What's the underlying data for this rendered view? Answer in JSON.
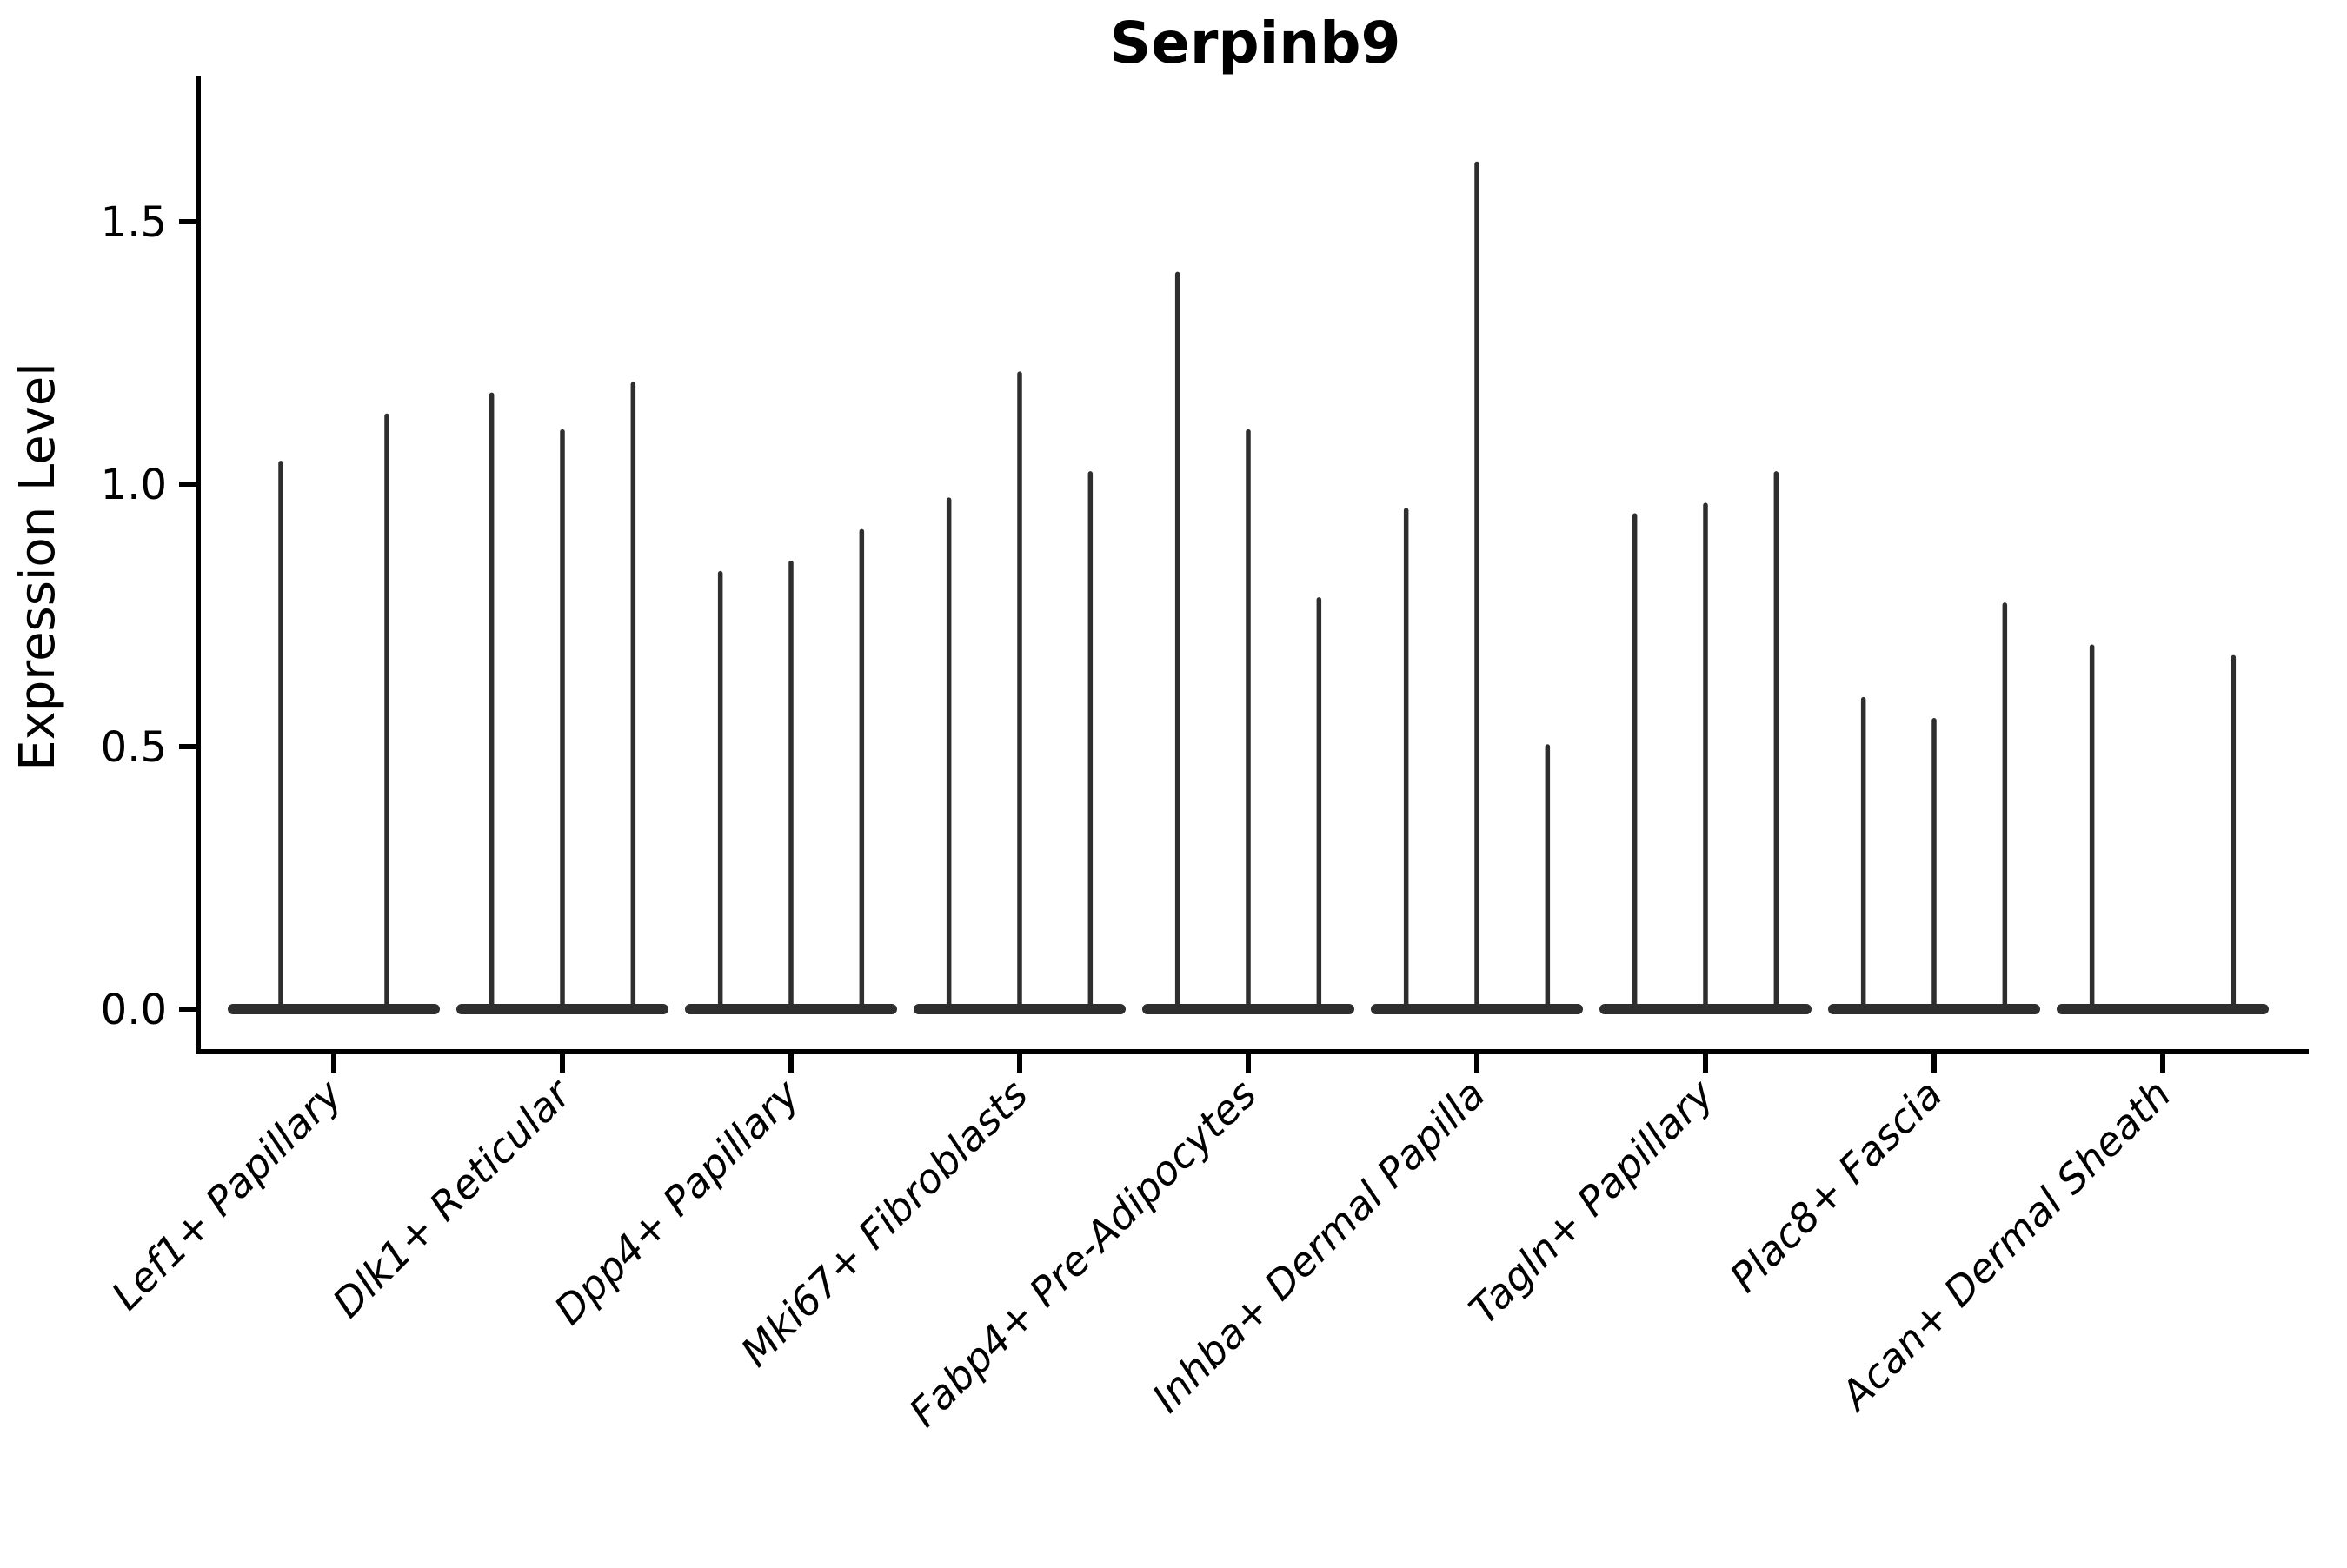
{
  "chart_data": {
    "type": "violin",
    "title": "Serpinb9",
    "xlabel": "",
    "ylabel": "Expression Level",
    "yticks": [
      0.0,
      0.5,
      1.0,
      1.5
    ],
    "ylim": [
      -0.08,
      1.78
    ],
    "legend": "none",
    "grid": false,
    "colors": {
      "violin_stroke": "#2e2e2e",
      "axis": "#000000",
      "background": "#ffffff"
    },
    "categories": [
      "Lef1+ Papillary",
      "Dlk1+ Reticular",
      "Dpp4+ Papillary",
      "Mki67+ Fibroblasts",
      "Fabp4+ Pre-Adipocytes",
      "Inhba+ Dermal Papilla",
      "Tagln+ Papillary",
      "Plac8+ Fascia",
      "Acan+ Dermal Sheath"
    ],
    "groups": [
      {
        "label": "Lef1+ Papillary",
        "violin_maxima": [
          1.04,
          1.13
        ]
      },
      {
        "label": "Dlk1+ Reticular",
        "violin_maxima": [
          1.17,
          1.1,
          1.19
        ]
      },
      {
        "label": "Dpp4+ Papillary",
        "violin_maxima": [
          0.83,
          0.85,
          0.91
        ]
      },
      {
        "label": "Mki67+ Fibroblasts",
        "violin_maxima": [
          0.97,
          1.21,
          1.02
        ]
      },
      {
        "label": "Fabp4+ Pre-Adipocytes",
        "violin_maxima": [
          1.4,
          1.1,
          0.78
        ]
      },
      {
        "label": "Inhba+ Dermal Papilla",
        "violin_maxima": [
          0.95,
          1.61,
          0.5
        ]
      },
      {
        "label": "Tagln+ Papillary",
        "violin_maxima": [
          0.94,
          0.96,
          1.02
        ]
      },
      {
        "label": "Plac8+ Fascia",
        "violin_maxima": [
          0.59,
          0.55,
          0.77
        ]
      },
      {
        "label": "Acan+ Dermal Sheath",
        "violin_maxima": [
          0.69,
          0.0,
          0.67
        ]
      }
    ],
    "description": "Violin plot of Serpinb9 expression level per fibroblast subtype; most cells at 0 giving flat bases with thin spikes to the maxima."
  }
}
